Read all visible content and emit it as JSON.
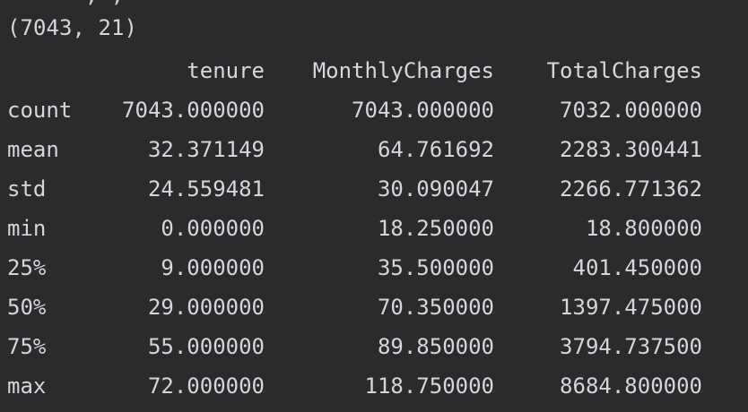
{
  "console": {
    "shape_output": "(7043, 21)",
    "describe_table": {
      "columns": [
        "tenure",
        "MonthlyCharges",
        "TotalCharges"
      ],
      "rows": [
        {
          "label": "count",
          "tenure": "7043.000000",
          "MonthlyCharges": "7043.000000",
          "TotalCharges": "7032.000000"
        },
        {
          "label": "mean",
          "tenure": "32.371149",
          "MonthlyCharges": "64.761692",
          "TotalCharges": "2283.300441"
        },
        {
          "label": "std",
          "tenure": "24.559481",
          "MonthlyCharges": "30.090047",
          "TotalCharges": "2266.771362"
        },
        {
          "label": "min",
          "tenure": "0.000000",
          "MonthlyCharges": "18.250000",
          "TotalCharges": "18.800000"
        },
        {
          "label": "25%",
          "tenure": "9.000000",
          "MonthlyCharges": "35.500000",
          "TotalCharges": "401.450000"
        },
        {
          "label": "50%",
          "tenure": "29.000000",
          "MonthlyCharges": "70.350000",
          "TotalCharges": "1397.475000"
        },
        {
          "label": "75%",
          "tenure": "55.000000",
          "MonthlyCharges": "89.850000",
          "TotalCharges": "3794.737500"
        },
        {
          "label": "max",
          "tenure": "72.000000",
          "MonthlyCharges": "118.750000",
          "TotalCharges": "8684.800000"
        }
      ]
    }
  },
  "colors": {
    "background": "#2b2b2b",
    "text": "#d3d6db"
  }
}
